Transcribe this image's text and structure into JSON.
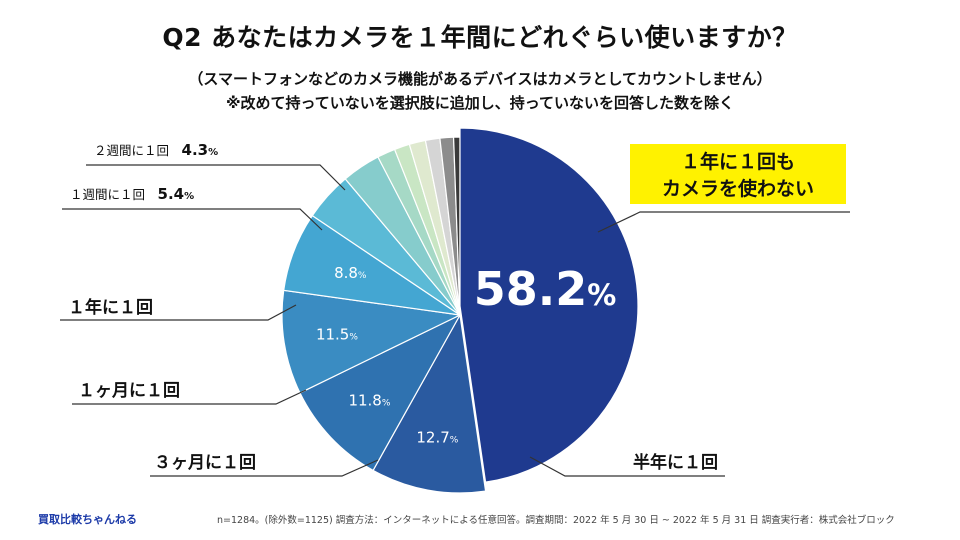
{
  "title": "Q2 あなたはカメラを１年間にどれぐらい使いますか？",
  "subtitle_1": "（スマートフォンなどのカメラ機能があるデバイスはカメラとしてカウントしません）",
  "subtitle_2": "※改めて持っていないを選択肢に追加し、持っていないを回答した数を除く",
  "footer": {
    "brand": "買取比較ちゃんねる",
    "note": "n=1284。(除外数=1125) 調査方法：インターネットによる任意回答。調査期間：2022 年 5 月 30 日 ~ 2022 年 5 月 31 日 調査実行者：株式会社ブロック"
  },
  "chart_data": {
    "type": "pie",
    "start": "12 o'clock",
    "direction": "clockwise",
    "slices": [
      {
        "label": "１年に１回も カメラを使わない",
        "label_line1": "１年に１回も",
        "label_line2": "カメラを使わない",
        "value": 58.2,
        "value_text": "58.2",
        "color": "#1f3a8f"
      },
      {
        "label": "半年に１回",
        "value": 12.7,
        "value_text": "12.7",
        "color": "#2a5aa0"
      },
      {
        "label": "３ヶ月に１回",
        "value": 11.8,
        "value_text": "11.8",
        "color": "#2f72b0"
      },
      {
        "label": "１ヶ月に１回",
        "value": 11.5,
        "value_text": "11.5",
        "color": "#3a8cc2"
      },
      {
        "label": "１年に１回",
        "value": 8.8,
        "value_text": "8.8",
        "color": "#44a6d2"
      },
      {
        "label": "１週間に１回",
        "value": 5.4,
        "value_text": "5.4",
        "color": "#5bbad6"
      },
      {
        "label": "２週間に１回",
        "value": 4.3,
        "value_text": "4.3",
        "color": "#86cccc"
      },
      {
        "label": "",
        "value": 2.0,
        "color": "#a6d9c6"
      },
      {
        "label": "",
        "value": 1.7,
        "color": "#c9e6c4"
      },
      {
        "label": "",
        "value": 1.8,
        "color": "#dfe9cf"
      },
      {
        "label": "",
        "value": 1.6,
        "color": "#d5d5d5"
      },
      {
        "label": "",
        "value": 1.5,
        "color": "#8c8c8c"
      },
      {
        "label": "",
        "value": 0.7,
        "color": "#3a3a3a"
      }
    ],
    "unit": "%"
  }
}
